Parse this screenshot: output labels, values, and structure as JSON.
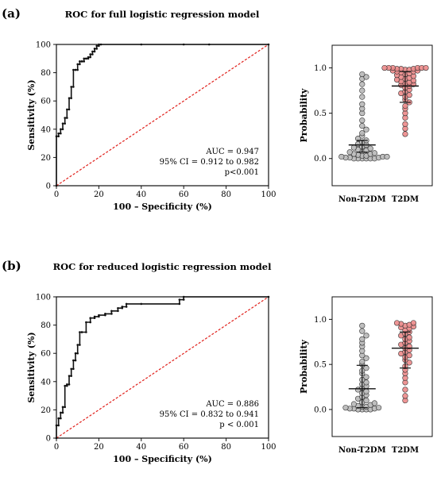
{
  "chart_data": [
    {
      "type": "line",
      "panel": "(a)",
      "title": "ROC for full logistic regression model",
      "xlabel": "100 – Specificity (%)",
      "ylabel": "Sensitivity (%)",
      "xlim": [
        0,
        100
      ],
      "ylim": [
        0,
        100
      ],
      "xticks": [
        "0",
        "20",
        "40",
        "60",
        "80",
        "100"
      ],
      "yticks": [
        "0",
        "20",
        "40",
        "60",
        "80",
        "100"
      ],
      "stats": [
        "AUC = 0.947",
        "95% CI = 0.912 to 0.982",
        "p<0.001"
      ],
      "roc_x": [
        0,
        0,
        1,
        1,
        2,
        2,
        3,
        3,
        4,
        4,
        5,
        5,
        6,
        6,
        7,
        7,
        8,
        8,
        9,
        9,
        10,
        10,
        11,
        11,
        12,
        12,
        13,
        13,
        14,
        14,
        15,
        15,
        16,
        16,
        17,
        17,
        18,
        18,
        19,
        19,
        20,
        20,
        21,
        40,
        60,
        72,
        100
      ],
      "roc_y": [
        0,
        35,
        35,
        37,
        37,
        40,
        40,
        44,
        44,
        48,
        48,
        54,
        54,
        62,
        62,
        70,
        70,
        82,
        82,
        82,
        82,
        86,
        86,
        88,
        88,
        88,
        88,
        90,
        90,
        90,
        90,
        91,
        91,
        93,
        93,
        95,
        95,
        97,
        97,
        99,
        99,
        100,
        100,
        100,
        100,
        100,
        100
      ],
      "reference_line": "diagonal",
      "colors": {
        "roc": "#111111",
        "reference": "#e0201b"
      }
    },
    {
      "type": "scatter",
      "panel": "(a)",
      "ylabel": "Probability",
      "ylim": [
        -0.3,
        1.25
      ],
      "yticks": [
        "0.0",
        "0.5",
        "1.0"
      ],
      "categories": [
        "Non-T2DM",
        "T2DM"
      ],
      "summary": [
        {
          "median": 0.15,
          "q1": 0.07,
          "q3": 0.2
        },
        {
          "median": 0.8,
          "q1": 0.62,
          "q3": 0.96
        }
      ],
      "points": [
        [
          0.0,
          0.0,
          0.0,
          0.0,
          0.0,
          0.0,
          0.01,
          0.01,
          0.01,
          0.02,
          0.02,
          0.02,
          0.03,
          0.03,
          0.04,
          0.05,
          0.05,
          0.06,
          0.07,
          0.08,
          0.09,
          0.1,
          0.11,
          0.12,
          0.13,
          0.15,
          0.16,
          0.18,
          0.2,
          0.22,
          0.25,
          0.28,
          0.32,
          0.36,
          0.42,
          0.5,
          0.55,
          0.6,
          0.68,
          0.75,
          0.82,
          0.88,
          0.9,
          0.93
        ],
        [
          0.27,
          0.33,
          0.38,
          0.45,
          0.5,
          0.55,
          0.58,
          0.62,
          0.65,
          0.68,
          0.7,
          0.72,
          0.74,
          0.76,
          0.78,
          0.8,
          0.81,
          0.82,
          0.83,
          0.84,
          0.85,
          0.86,
          0.87,
          0.88,
          0.89,
          0.9,
          0.91,
          0.92,
          0.93,
          0.94,
          0.95,
          0.96,
          0.96,
          0.97,
          0.97,
          0.98,
          0.98,
          0.99,
          0.99,
          0.99,
          1.0,
          1.0,
          1.0,
          1.0,
          1.0,
          1.0
        ]
      ],
      "colors": {
        "group0": "#b8b8b8",
        "group1": "#ec8a8a",
        "edge": "#333333"
      }
    },
    {
      "type": "line",
      "panel": "(b)",
      "title": "ROC for reduced logistic regression model",
      "xlabel": "100 – Specificity (%)",
      "ylabel": "Sensitivity (%)",
      "xlim": [
        0,
        100
      ],
      "ylim": [
        0,
        100
      ],
      "xticks": [
        "0",
        "20",
        "40",
        "60",
        "80",
        "100"
      ],
      "yticks": [
        "0",
        "20",
        "40",
        "60",
        "80",
        "100"
      ],
      "stats": [
        "AUC = 0.886",
        "95% CI = 0.832 to 0.941",
        "p < 0.001"
      ],
      "roc_x": [
        0,
        0,
        1,
        1,
        2,
        2,
        3,
        3,
        4,
        4,
        5,
        5,
        6,
        6,
        7,
        7,
        8,
        8,
        9,
        9,
        10,
        10,
        11,
        11,
        12,
        12,
        14,
        14,
        16,
        16,
        18,
        18,
        20,
        20,
        23,
        23,
        26,
        26,
        29,
        29,
        31,
        31,
        33,
        33,
        40,
        58,
        58,
        60,
        60,
        100
      ],
      "roc_y": [
        0,
        9,
        9,
        14,
        14,
        18,
        18,
        22,
        22,
        37,
        37,
        38,
        38,
        44,
        44,
        49,
        49,
        55,
        55,
        60,
        60,
        66,
        66,
        75,
        75,
        75,
        75,
        82,
        82,
        85,
        85,
        86,
        86,
        87,
        87,
        88,
        88,
        90,
        90,
        92,
        92,
        93,
        93,
        95,
        95,
        95,
        98,
        98,
        100,
        100
      ],
      "reference_line": "diagonal",
      "colors": {
        "roc": "#111111",
        "reference": "#e0201b"
      }
    },
    {
      "type": "scatter",
      "panel": "(b)",
      "ylabel": "Probability",
      "ylim": [
        -0.3,
        1.25
      ],
      "yticks": [
        "0.0",
        "0.5",
        "1.0"
      ],
      "categories": [
        "Non-T2DM",
        "T2DM"
      ],
      "summary": [
        {
          "median": 0.23,
          "q1": 0.02,
          "q3": 0.49
        },
        {
          "median": 0.68,
          "q1": 0.46,
          "q3": 0.86
        }
      ],
      "points": [
        [
          0.0,
          0.0,
          0.0,
          0.0,
          0.01,
          0.01,
          0.01,
          0.02,
          0.02,
          0.03,
          0.03,
          0.04,
          0.05,
          0.06,
          0.07,
          0.08,
          0.1,
          0.12,
          0.14,
          0.16,
          0.18,
          0.2,
          0.22,
          0.24,
          0.26,
          0.28,
          0.3,
          0.33,
          0.36,
          0.4,
          0.43,
          0.46,
          0.5,
          0.53,
          0.57,
          0.6,
          0.65,
          0.7,
          0.74,
          0.78,
          0.82,
          0.87,
          0.93
        ],
        [
          0.1,
          0.15,
          0.22,
          0.3,
          0.35,
          0.4,
          0.44,
          0.48,
          0.52,
          0.55,
          0.58,
          0.6,
          0.62,
          0.64,
          0.66,
          0.68,
          0.7,
          0.72,
          0.74,
          0.76,
          0.78,
          0.8,
          0.82,
          0.84,
          0.86,
          0.88,
          0.9,
          0.91,
          0.92,
          0.93,
          0.94,
          0.95,
          0.96,
          0.96
        ]
      ],
      "colors": {
        "group0": "#b8b8b8",
        "group1": "#ec8a8a",
        "edge": "#333333"
      }
    }
  ]
}
